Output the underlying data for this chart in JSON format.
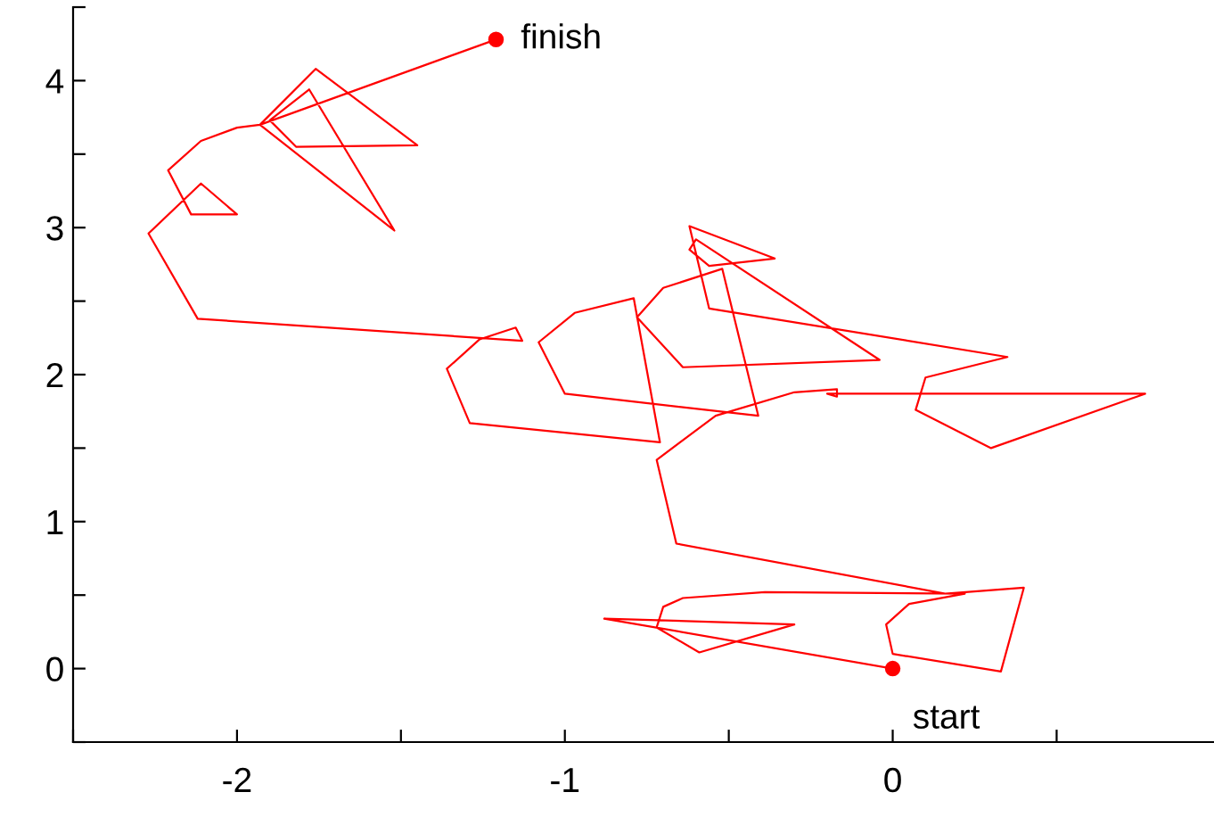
{
  "chart_data": {
    "type": "line",
    "xlim": [
      -2.5,
      0.98
    ],
    "ylim": [
      -0.5,
      4.5
    ],
    "xticks": [
      {
        "value": -2.5,
        "label": null
      },
      -2,
      {
        "value": -1.5,
        "label": null
      },
      -1,
      {
        "value": -0.5,
        "label": null
      },
      0,
      {
        "value": 0.5,
        "label": null
      }
    ],
    "yticks": [
      {
        "value": -0.5,
        "label": null
      },
      0,
      {
        "value": 0.5,
        "label": null
      },
      1,
      {
        "value": 1.5,
        "label": null
      },
      2,
      {
        "value": 2.5,
        "label": null
      },
      3,
      {
        "value": 3.5,
        "label": null
      },
      4,
      {
        "value": 4.5,
        "label": null
      }
    ],
    "grid": false,
    "legend": false,
    "series": [
      {
        "color": "#ff0000",
        "marker": "none",
        "x": [
          0,
          -0.88,
          -0.3,
          -0.59,
          -0.72,
          -0.7,
          -0.64,
          -0.39,
          0.22,
          0.05,
          -0.02,
          0.0,
          0.33,
          0.4,
          0.16,
          -0.66,
          -0.72,
          -0.54,
          -0.3,
          -0.17,
          -0.17,
          -0.2,
          0.77,
          0.3,
          0.07,
          0.1,
          0.35,
          -0.56,
          -0.62,
          -0.36,
          -0.56,
          -0.62,
          -0.6,
          -0.04,
          -0.64,
          -0.78,
          -0.7,
          -0.52,
          -0.41,
          -1.0,
          -1.08,
          -0.97,
          -0.79,
          -0.71,
          -1.29,
          -1.36,
          -1.26,
          -1.15,
          -1.13,
          -2.12,
          -2.27,
          -2.11,
          -2.0,
          -2.14,
          -2.21,
          -2.11,
          -2.0,
          -1.93,
          -1.52,
          -1.78,
          -1.9,
          -1.82,
          -1.45,
          -1.76,
          -1.93,
          -1.21
        ],
        "values": [
          0,
          0.34,
          0.3,
          0.11,
          0.28,
          0.42,
          0.48,
          0.52,
          0.51,
          0.44,
          0.3,
          0.1,
          -0.02,
          0.55,
          0.51,
          0.85,
          1.42,
          1.72,
          1.88,
          1.9,
          1.85,
          1.87,
          1.87,
          1.5,
          1.76,
          1.98,
          2.12,
          2.45,
          3.01,
          2.79,
          2.74,
          2.85,
          2.92,
          2.1,
          2.05,
          2.39,
          2.59,
          2.72,
          1.72,
          1.87,
          2.22,
          2.42,
          2.52,
          1.54,
          1.67,
          2.04,
          2.24,
          2.32,
          2.23,
          2.38,
          2.96,
          3.3,
          3.09,
          3.09,
          3.39,
          3.59,
          3.68,
          3.7,
          2.98,
          3.94,
          3.73,
          3.55,
          3.56,
          4.08,
          3.7,
          4.28
        ]
      },
      {
        "type": "scatter",
        "color": "#ff0000",
        "marker": "circle",
        "x": [
          0,
          -1.21
        ],
        "values": [
          0,
          4.28
        ]
      }
    ],
    "annotations": [
      {
        "text": "start",
        "x": 0,
        "y": 0
      },
      {
        "text": "finish",
        "x": -1.21,
        "y": 4.28
      }
    ]
  }
}
